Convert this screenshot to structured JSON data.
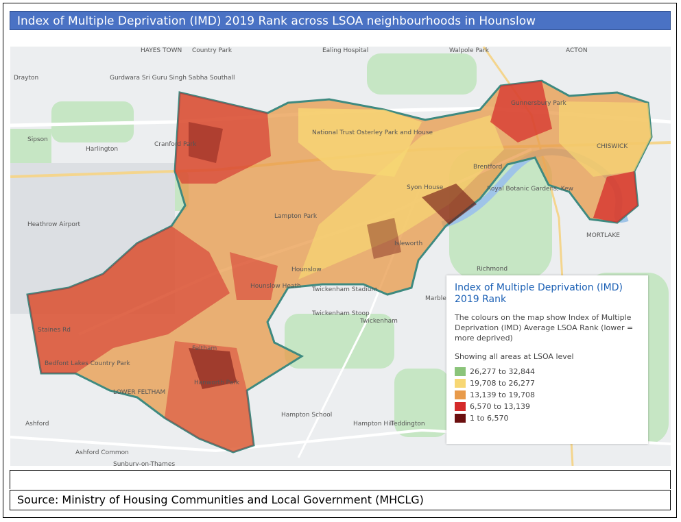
{
  "header": {
    "title": "Index of Multiple Deprivation (IMD) 2019 Rank across LSOA neighbourhoods in Hounslow"
  },
  "map": {
    "places": [
      "HAYES TOWN",
      "Country Park",
      "Ealing Hospital",
      "Walpole Park",
      "ACTON",
      "Drayton",
      "Gurdwara Sri Guru Singh Sabha Southall",
      "Sipson",
      "Harlington",
      "Cranford Park",
      "National Trust Osterley Park and House",
      "Gunnersbury Park",
      "Brentford",
      "CHISWICK",
      "Syon House",
      "Royal Botanic Gardens, Kew",
      "Heathrow Airport",
      "Lampton Park",
      "Isleworth",
      "Hounslow",
      "Hounslow Heath",
      "MORTLAKE",
      "Richmond",
      "Twickenham Stadium",
      "Twickenham Stoop",
      "Marble Hill",
      "Twickenham",
      "Feltham",
      "Bedfont Lakes Country Park",
      "Hanworth Park",
      "LOWER FELTHAM",
      "Hampton School",
      "Hampton Hill",
      "Teddington",
      "Ashford",
      "Ashford Common",
      "Sunbury-on-Thames",
      "Staines Rd"
    ]
  },
  "legend": {
    "title": "Index of Multiple Deprivation (IMD) 2019 Rank",
    "description": "The colours on the map show Index of Multiple Deprivation (IMD) Average LSOA Rank (lower = more deprived)",
    "note": "Showing all areas at LSOA level",
    "items": [
      {
        "label": "26,277 to 32,844",
        "color": "#8bc47a"
      },
      {
        "label": "19,708 to 26,277",
        "color": "#f7d774"
      },
      {
        "label": "13,139 to 19,708",
        "color": "#e89a4a"
      },
      {
        "label": "6,570 to 13,139",
        "color": "#d42a2a"
      },
      {
        "label": "1 to 6,570",
        "color": "#6b0f0f"
      }
    ]
  },
  "source": "Source: Ministry of Housing Communities and Local Government (MHCLG)"
}
